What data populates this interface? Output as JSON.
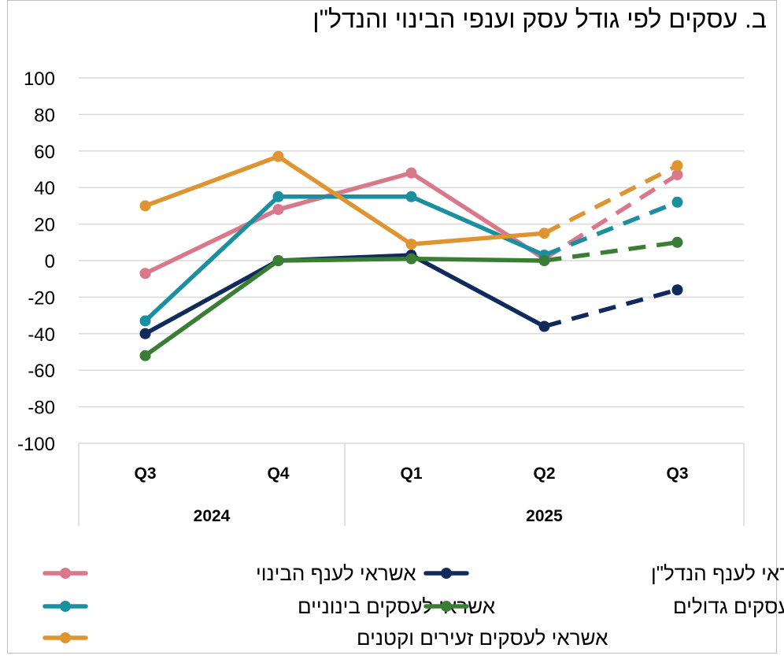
{
  "title": "ב. עסקים לפי גודל עסק וענפי הבינוי והנדל\"ן",
  "chart_data": {
    "type": "line",
    "title": "ב. עסקים לפי גודל עסק וענפי הבינוי והנדל\"ן",
    "categories": [
      "Q3",
      "Q4",
      "Q1",
      "Q2",
      "Q3"
    ],
    "year_groups": [
      {
        "label": "2024",
        "span": [
          0,
          1
        ]
      },
      {
        "label": "2025",
        "span": [
          2,
          4
        ]
      }
    ],
    "ylim": [
      -100,
      100
    ],
    "yticks": [
      100,
      80,
      60,
      40,
      20,
      0,
      -20,
      -40,
      -60,
      -80,
      -100
    ],
    "grid": true,
    "dashed_from_index": 3,
    "legend_position": "bottom",
    "series": [
      {
        "name": "אשראי לענף הבינוי",
        "color": "#d9788a",
        "values": [
          -7,
          28,
          48,
          1,
          47
        ]
      },
      {
        "name": "אשראי לענף הנדל\"ן",
        "color": "#102a5c",
        "values": [
          -40,
          0,
          3,
          -36,
          -16
        ]
      },
      {
        "name": "אשראי לעסקים בינוניים",
        "color": "#1a8fa0",
        "values": [
          -33,
          35,
          35,
          3,
          32
        ]
      },
      {
        "name": "אשראי לעסקים גדולים",
        "color": "#3a7d34",
        "values": [
          -52,
          0,
          1,
          0,
          10
        ]
      },
      {
        "name": "אשראי לעסקים זעירים וקטנים",
        "color": "#df9432",
        "values": [
          30,
          57,
          9,
          15,
          52
        ]
      }
    ]
  }
}
